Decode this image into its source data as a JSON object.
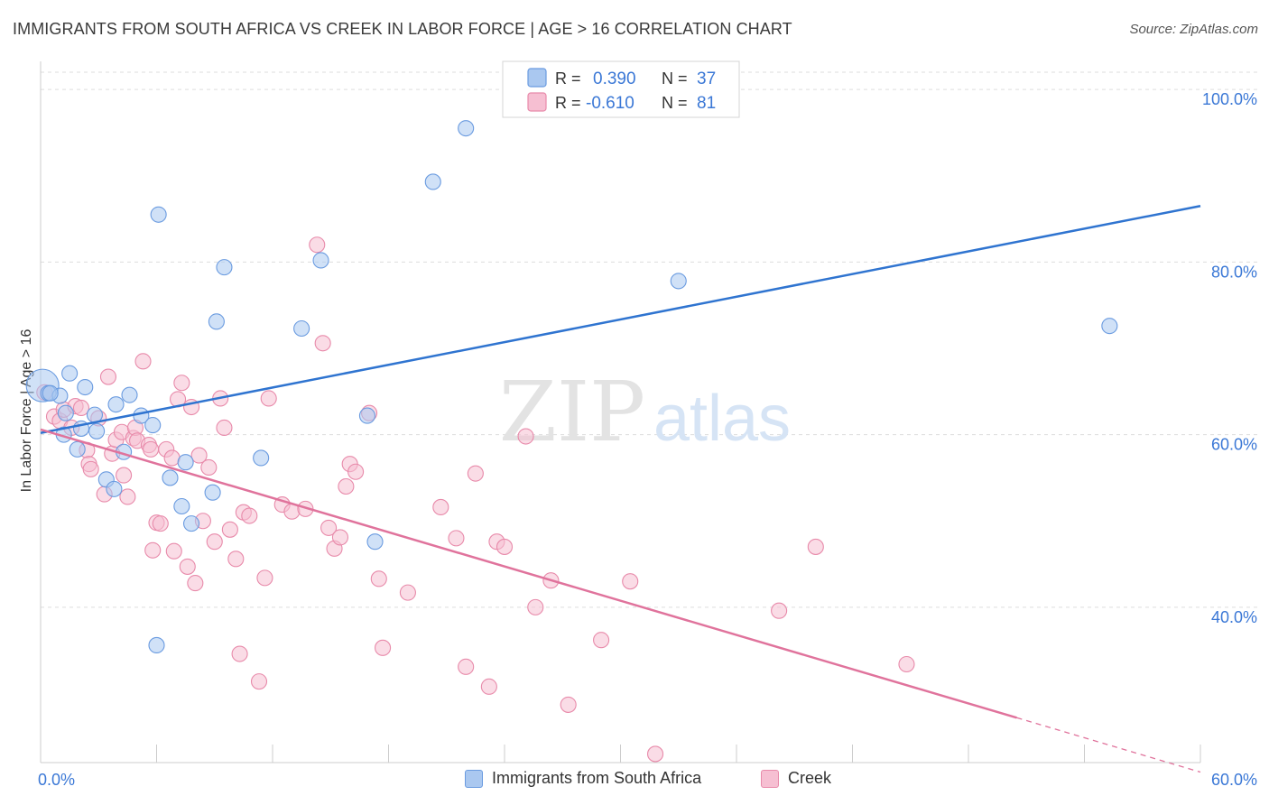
{
  "title": "IMMIGRANTS FROM SOUTH AFRICA VS CREEK IN LABOR FORCE | AGE > 16 CORRELATION CHART",
  "source": "Source: ZipAtlas.com",
  "watermark": {
    "zip": "ZIP",
    "atlas": "atlas"
  },
  "legend_top": [
    {
      "r_label": "R =",
      "r_value": "0.390",
      "n_label": "N =",
      "n_value": "37"
    },
    {
      "r_label": "R =",
      "r_value": "-0.610",
      "n_label": "N =",
      "n_value": "81"
    }
  ],
  "legend_bottom": [
    {
      "label": "Immigrants from South Africa"
    },
    {
      "label": "Creek"
    }
  ],
  "colors": {
    "blue_fill": "#aac8f0",
    "blue_stroke": "#6a9be0",
    "blue_line": "#2f74d0",
    "pink_fill": "#f6bfd2",
    "pink_stroke": "#e88aaa",
    "pink_line": "#e0739c",
    "axis_text": "#3b78d6",
    "grid": "#dddddd"
  },
  "chart_data": {
    "type": "scatter",
    "title": "IMMIGRANTS FROM SOUTH AFRICA VS CREEK IN LABOR FORCE | AGE > 16 CORRELATION CHART",
    "xlabel": "",
    "ylabel": "In Labor Force | Age > 16",
    "xlim": [
      0,
      60
    ],
    "ylim": [
      22,
      102
    ],
    "x_tick_labels": [
      "0.0%",
      "60.0%"
    ],
    "y_ticks": [
      40,
      60,
      80,
      100
    ],
    "y_tick_labels": [
      "40.0%",
      "60.0%",
      "80.0%",
      "100.0%"
    ],
    "grid": true,
    "legend_position": "top-center",
    "series": [
      {
        "name": "Immigrants from South Africa",
        "r": 0.39,
        "n": 37,
        "points": [
          [
            0.1,
            65.7
          ],
          [
            0.4,
            64.8
          ],
          [
            1.0,
            64.5
          ],
          [
            1.5,
            67.1
          ],
          [
            2.3,
            65.5
          ],
          [
            1.3,
            62.5
          ],
          [
            1.2,
            60.0
          ],
          [
            1.9,
            58.3
          ],
          [
            2.1,
            60.7
          ],
          [
            2.9,
            60.4
          ],
          [
            2.8,
            62.3
          ],
          [
            3.9,
            63.5
          ],
          [
            4.6,
            64.6
          ],
          [
            5.2,
            62.2
          ],
          [
            5.8,
            61.1
          ],
          [
            4.3,
            58.0
          ],
          [
            3.4,
            54.8
          ],
          [
            3.8,
            53.7
          ],
          [
            6.7,
            55.0
          ],
          [
            7.5,
            56.8
          ],
          [
            7.3,
            51.7
          ],
          [
            7.8,
            49.7
          ],
          [
            8.9,
            53.3
          ],
          [
            11.4,
            57.3
          ],
          [
            6.1,
            85.5
          ],
          [
            9.5,
            79.4
          ],
          [
            9.1,
            73.1
          ],
          [
            13.5,
            72.3
          ],
          [
            14.5,
            80.2
          ],
          [
            16.9,
            62.2
          ],
          [
            17.3,
            47.6
          ],
          [
            20.3,
            89.3
          ],
          [
            22.0,
            95.5
          ],
          [
            33.0,
            77.8
          ],
          [
            55.3,
            72.6
          ],
          [
            6.0,
            35.6
          ],
          [
            0.5,
            64.8
          ]
        ],
        "trend": {
          "x": [
            0,
            60
          ],
          "y": [
            60.2,
            86.5
          ]
        }
      },
      {
        "name": "Creek",
        "r": -0.61,
        "n": 81,
        "points": [
          [
            0.2,
            64.9
          ],
          [
            0.7,
            62.1
          ],
          [
            1.0,
            61.6
          ],
          [
            1.2,
            62.9
          ],
          [
            1.6,
            60.8
          ],
          [
            1.8,
            63.3
          ],
          [
            2.1,
            63.1
          ],
          [
            2.4,
            58.2
          ],
          [
            2.5,
            56.6
          ],
          [
            2.6,
            56.0
          ],
          [
            3.0,
            61.9
          ],
          [
            3.3,
            53.1
          ],
          [
            3.5,
            66.7
          ],
          [
            3.7,
            57.8
          ],
          [
            3.9,
            59.4
          ],
          [
            4.2,
            60.3
          ],
          [
            4.3,
            55.3
          ],
          [
            4.5,
            52.8
          ],
          [
            4.8,
            59.6
          ],
          [
            4.9,
            60.8
          ],
          [
            5.0,
            59.3
          ],
          [
            5.3,
            68.5
          ],
          [
            5.6,
            58.8
          ],
          [
            5.7,
            58.3
          ],
          [
            5.8,
            46.6
          ],
          [
            6.0,
            49.8
          ],
          [
            6.2,
            49.7
          ],
          [
            6.5,
            58.3
          ],
          [
            6.8,
            57.3
          ],
          [
            6.9,
            46.5
          ],
          [
            7.1,
            64.1
          ],
          [
            7.3,
            66.0
          ],
          [
            7.6,
            44.7
          ],
          [
            7.8,
            63.2
          ],
          [
            8.0,
            42.8
          ],
          [
            8.2,
            57.6
          ],
          [
            8.4,
            50.0
          ],
          [
            8.7,
            56.2
          ],
          [
            9.0,
            47.6
          ],
          [
            9.3,
            64.2
          ],
          [
            9.5,
            60.8
          ],
          [
            9.8,
            49.0
          ],
          [
            10.1,
            45.6
          ],
          [
            10.3,
            34.6
          ],
          [
            10.5,
            51.0
          ],
          [
            10.8,
            50.6
          ],
          [
            11.3,
            31.4
          ],
          [
            11.6,
            43.4
          ],
          [
            11.8,
            64.2
          ],
          [
            12.5,
            51.9
          ],
          [
            13.0,
            51.1
          ],
          [
            13.7,
            51.4
          ],
          [
            14.3,
            82.0
          ],
          [
            14.6,
            70.6
          ],
          [
            14.9,
            49.2
          ],
          [
            15.2,
            46.8
          ],
          [
            15.5,
            48.1
          ],
          [
            16.0,
            56.6
          ],
          [
            16.3,
            55.7
          ],
          [
            17.0,
            62.5
          ],
          [
            17.5,
            43.3
          ],
          [
            17.7,
            35.3
          ],
          [
            19.0,
            41.7
          ],
          [
            20.7,
            51.6
          ],
          [
            21.5,
            48.0
          ],
          [
            22.0,
            33.1
          ],
          [
            22.5,
            55.5
          ],
          [
            23.2,
            30.8
          ],
          [
            23.6,
            47.6
          ],
          [
            24.0,
            47.0
          ],
          [
            25.1,
            59.8
          ],
          [
            25.6,
            40.0
          ],
          [
            26.4,
            43.1
          ],
          [
            27.3,
            28.7
          ],
          [
            29.0,
            36.2
          ],
          [
            30.5,
            43.0
          ],
          [
            31.8,
            23.0
          ],
          [
            38.2,
            39.6
          ],
          [
            40.1,
            47.0
          ],
          [
            44.8,
            33.4
          ],
          [
            15.8,
            54.0
          ]
        ],
        "trend": {
          "x": [
            0,
            50.5
          ],
          "y": [
            60.6,
            27.2
          ]
        },
        "trend_dashed": {
          "x": [
            50.5,
            60
          ],
          "y": [
            27.2,
            20.9
          ]
        }
      }
    ]
  }
}
